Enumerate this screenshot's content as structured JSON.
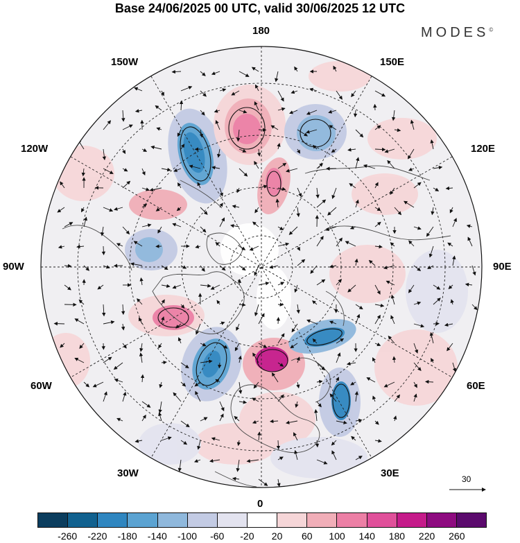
{
  "title": "Base 24/06/2025 00 UTC, valid 30/06/2025 12 UTC",
  "brand": "MODES",
  "brand_mark": "©",
  "longitude_labels": {
    "top": "180",
    "bottom": "0",
    "left": "90W",
    "right": "90E",
    "ul_150w": "150W",
    "ur_150e": "150E",
    "ul_120w": "120W",
    "ur_120e": "120E",
    "ll_60w": "60W",
    "lr_60e": "60E",
    "ll_30w": "30W",
    "lr_30e": "30E"
  },
  "vector_scale_label": "30",
  "colorbar": {
    "colors": [
      "#0b3d5e",
      "#11618f",
      "#2f86c0",
      "#5ba3d2",
      "#8fb8dc",
      "#c3cbe4",
      "#e3e3ef",
      "#ffffff",
      "#f6d6d8",
      "#f1aeb8",
      "#ec7fa5",
      "#e0509a",
      "#c51b8a",
      "#8e0b80",
      "#5b0a6d"
    ],
    "tick_labels": [
      "-260",
      "-220",
      "-180",
      "-140",
      "-100",
      "-60",
      "-20",
      "20",
      "60",
      "100",
      "140",
      "180",
      "220",
      "260"
    ]
  }
}
